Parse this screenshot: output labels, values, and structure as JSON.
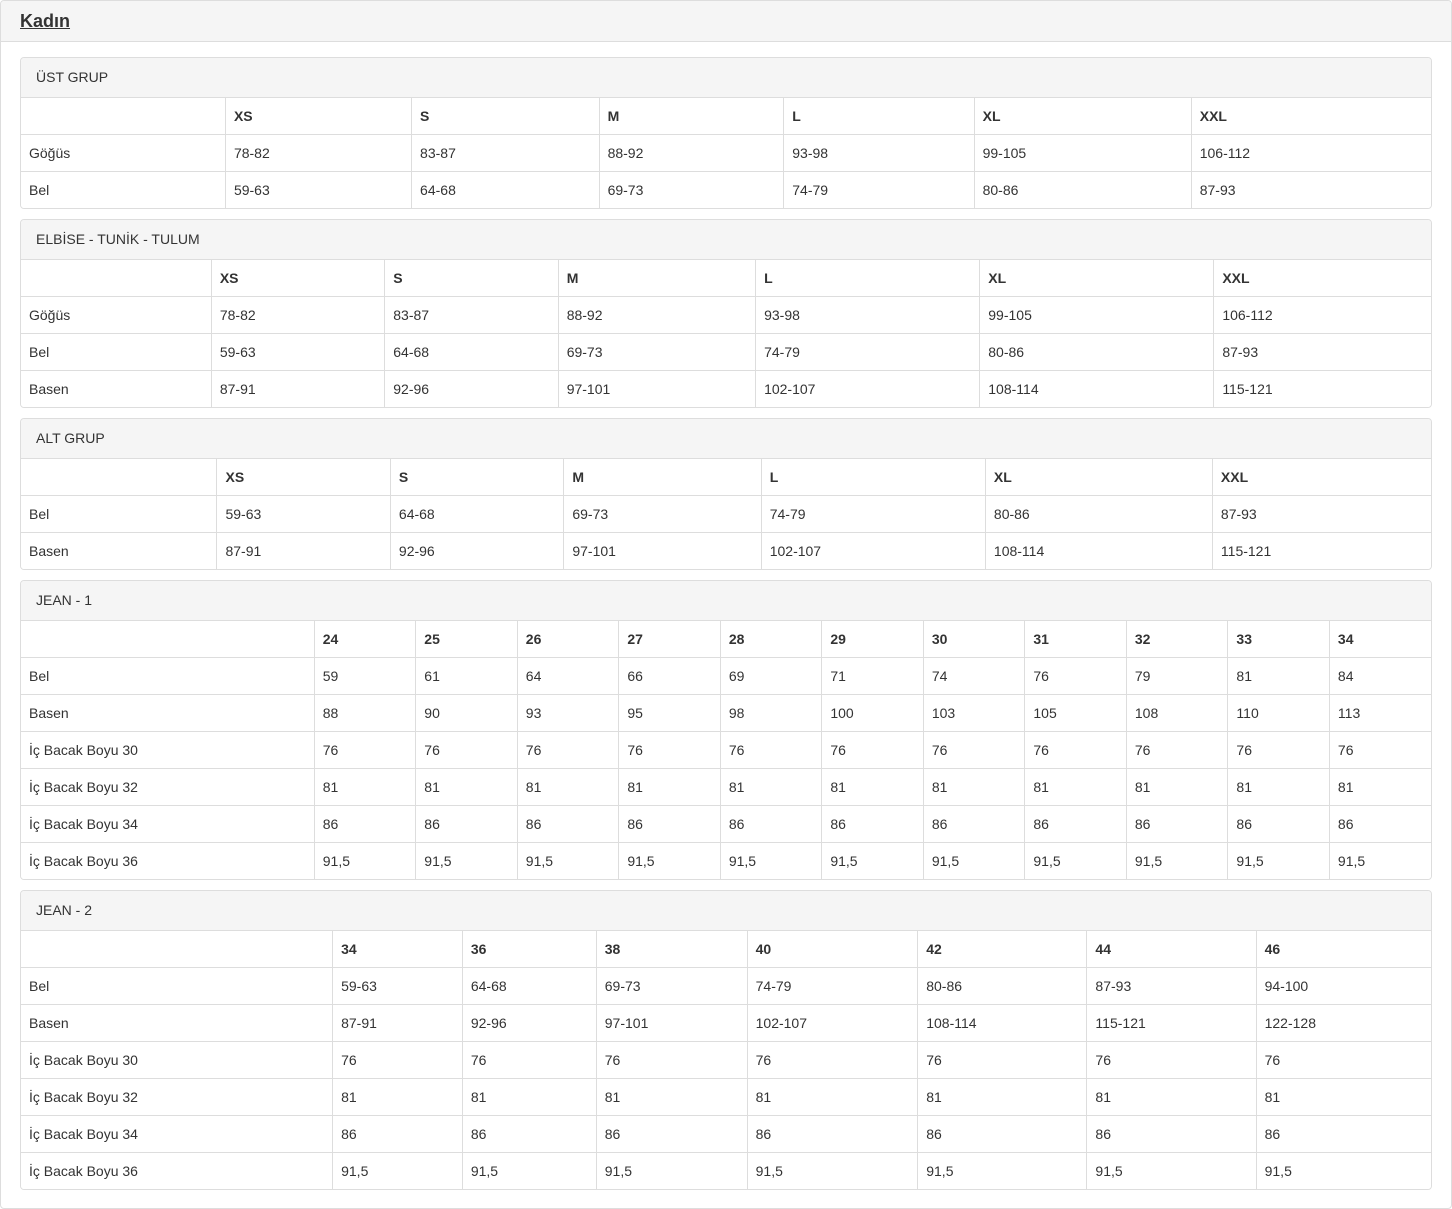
{
  "page": {
    "title": "Kadın"
  },
  "colors": {
    "text": "#333333",
    "border": "#dddddd",
    "panel_heading_bg": "#f5f5f5",
    "page_bg": "#ffffff"
  },
  "tables": [
    {
      "title": "ÜST GRUP",
      "columns": [
        "XS",
        "S",
        "M",
        "L",
        "XL",
        "XXL"
      ],
      "rows": [
        {
          "label": "Göğüs",
          "values": [
            "78-82",
            "83-87",
            "88-92",
            "93-98",
            "99-105",
            "106-112"
          ]
        },
        {
          "label": "Bel",
          "values": [
            "59-63",
            "64-68",
            "69-73",
            "74-79",
            "80-86",
            "87-93"
          ]
        }
      ]
    },
    {
      "title": "ELBİSE - TUNİK - TULUM",
      "columns": [
        "XS",
        "S",
        "M",
        "L",
        "XL",
        "XXL"
      ],
      "rows": [
        {
          "label": "Göğüs",
          "values": [
            "78-82",
            "83-87",
            "88-92",
            "93-98",
            "99-105",
            "106-112"
          ]
        },
        {
          "label": "Bel",
          "values": [
            "59-63",
            "64-68",
            "69-73",
            "74-79",
            "80-86",
            "87-93"
          ]
        },
        {
          "label": "Basen",
          "values": [
            "87-91",
            "92-96",
            "97-101",
            "102-107",
            "108-114",
            "115-121"
          ]
        }
      ]
    },
    {
      "title": "ALT GRUP",
      "columns": [
        "XS",
        "S",
        "M",
        "L",
        "XL",
        "XXL"
      ],
      "rows": [
        {
          "label": "Bel",
          "values": [
            "59-63",
            "64-68",
            "69-73",
            "74-79",
            "80-86",
            "87-93"
          ]
        },
        {
          "label": "Basen",
          "values": [
            "87-91",
            "92-96",
            "97-101",
            "102-107",
            "108-114",
            "115-121"
          ]
        }
      ]
    },
    {
      "title": "JEAN - 1",
      "columns": [
        "24",
        "25",
        "26",
        "27",
        "28",
        "29",
        "30",
        "31",
        "32",
        "33",
        "34"
      ],
      "rows": [
        {
          "label": "Bel",
          "values": [
            "59",
            "61",
            "64",
            "66",
            "69",
            "71",
            "74",
            "76",
            "79",
            "81",
            "84"
          ]
        },
        {
          "label": "Basen",
          "values": [
            "88",
            "90",
            "93",
            "95",
            "98",
            "100",
            "103",
            "105",
            "108",
            "110",
            "113"
          ]
        },
        {
          "label": "İç Bacak Boyu 30",
          "values": [
            "76",
            "76",
            "76",
            "76",
            "76",
            "76",
            "76",
            "76",
            "76",
            "76",
            "76"
          ]
        },
        {
          "label": "İç Bacak Boyu 32",
          "values": [
            "81",
            "81",
            "81",
            "81",
            "81",
            "81",
            "81",
            "81",
            "81",
            "81",
            "81"
          ]
        },
        {
          "label": "İç Bacak Boyu 34",
          "values": [
            "86",
            "86",
            "86",
            "86",
            "86",
            "86",
            "86",
            "86",
            "86",
            "86",
            "86"
          ]
        },
        {
          "label": "İç Bacak Boyu 36",
          "values": [
            "91,5",
            "91,5",
            "91,5",
            "91,5",
            "91,5",
            "91,5",
            "91,5",
            "91,5",
            "91,5",
            "91,5",
            "91,5"
          ]
        }
      ]
    },
    {
      "title": "JEAN - 2",
      "columns": [
        "34",
        "36",
        "38",
        "40",
        "42",
        "44",
        "46"
      ],
      "rows": [
        {
          "label": "Bel",
          "values": [
            "59-63",
            "64-68",
            "69-73",
            "74-79",
            "80-86",
            "87-93",
            "94-100"
          ]
        },
        {
          "label": "Basen",
          "values": [
            "87-91",
            "92-96",
            "97-101",
            "102-107",
            "108-114",
            "115-121",
            "122-128"
          ]
        },
        {
          "label": "İç Bacak Boyu 30",
          "values": [
            "76",
            "76",
            "76",
            "76",
            "76",
            "76",
            "76"
          ]
        },
        {
          "label": "İç Bacak Boyu 32",
          "values": [
            "81",
            "81",
            "81",
            "81",
            "81",
            "81",
            "81"
          ]
        },
        {
          "label": "İç Bacak Boyu 34",
          "values": [
            "86",
            "86",
            "86",
            "86",
            "86",
            "86",
            "86"
          ]
        },
        {
          "label": "İç Bacak Boyu 36",
          "values": [
            "91,5",
            "91,5",
            "91,5",
            "91,5",
            "91,5",
            "91,5",
            "91,5"
          ]
        }
      ]
    }
  ]
}
